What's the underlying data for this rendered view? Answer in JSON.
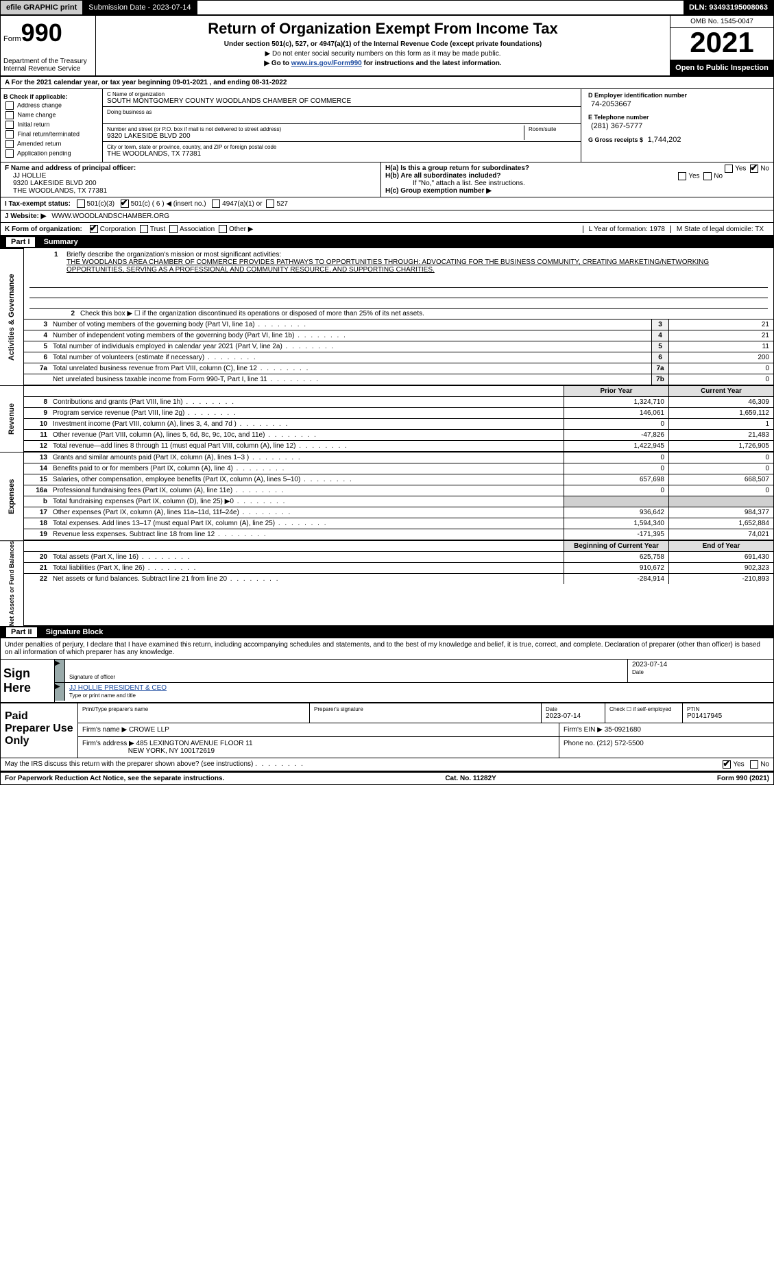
{
  "topbar": {
    "efile": "efile GRAPHIC print",
    "submission": "Submission Date - 2023-07-14",
    "dln": "DLN: 93493195008063"
  },
  "header": {
    "form_prefix": "Form",
    "form_number": "990",
    "dept": "Department of the Treasury",
    "irs": "Internal Revenue Service",
    "title": "Return of Organization Exempt From Income Tax",
    "sub1": "Under section 501(c), 527, or 4947(a)(1) of the Internal Revenue Code (except private foundations)",
    "sub2": "▶ Do not enter social security numbers on this form as it may be made public.",
    "sub3_a": "▶ Go to ",
    "sub3_link": "www.irs.gov/Form990",
    "sub3_b": " for instructions and the latest information.",
    "omb": "OMB No. 1545-0047",
    "year": "2021",
    "open": "Open to Public Inspection"
  },
  "A": {
    "text": "For the 2021 calendar year, or tax year beginning 09-01-2021   , and ending 08-31-2022"
  },
  "B": {
    "label": "B Check if applicable:",
    "items": [
      "Address change",
      "Name change",
      "Initial return",
      "Final return/terminated",
      "Amended return",
      "Application pending"
    ]
  },
  "C": {
    "name_label": "C Name of organization",
    "name": "SOUTH MONTGOMERY COUNTY WOODLANDS CHAMBER OF COMMERCE",
    "dba_label": "Doing business as",
    "street_label": "Number and street (or P.O. box if mail is not delivered to street address)",
    "room_label": "Room/suite",
    "street": "9320 LAKESIDE BLVD 200",
    "city_label": "City or town, state or province, country, and ZIP or foreign postal code",
    "city": "THE WOODLANDS, TX  77381"
  },
  "D": {
    "label": "D Employer identification number",
    "value": "74-2053667"
  },
  "E": {
    "label": "E Telephone number",
    "value": "(281) 367-5777"
  },
  "G": {
    "label": "G Gross receipts $",
    "value": "1,744,202"
  },
  "F": {
    "label": "F  Name and address of principal officer:",
    "name": "JJ HOLLIE",
    "addr1": "9320 LAKESIDE BLVD 200",
    "addr2": "THE WOODLANDS, TX  77381"
  },
  "H": {
    "a": "H(a)  Is this a group return for subordinates?",
    "a_yes": "Yes",
    "a_no": "No",
    "b": "H(b)  Are all subordinates included?",
    "b_yes": "Yes",
    "b_no": "No",
    "b_note": "If \"No,\" attach a list. See instructions.",
    "c": "H(c)  Group exemption number ▶"
  },
  "I": {
    "label": "I   Tax-exempt status:",
    "c3": "501(c)(3)",
    "c": "501(c) ( 6 ) ◀ (insert no.)",
    "a1": "4947(a)(1) or",
    "s527": "527"
  },
  "J": {
    "label": "J   Website: ▶",
    "value": "WWW.WOODLANDSCHAMBER.ORG"
  },
  "K": {
    "label": "K Form of organization:",
    "opts": [
      "Corporation",
      "Trust",
      "Association",
      "Other ▶"
    ],
    "L": "L Year of formation: 1978",
    "M": "M State of legal domicile: TX"
  },
  "partI": {
    "num": "Part I",
    "title": "Summary"
  },
  "mission": {
    "n": "1",
    "label": "Briefly describe the organization's mission or most significant activities:",
    "text": "THE WOODLANDS AREA CHAMBER OF COMMERCE PROVIDES PATHWAYS TO OPPORTUNITIES THROUGH: ADVOCATING FOR THE BUSINESS COMMUNITY, CREATING MARKETING/NETWORKING OPPORTUNITIES, SERVING AS A PROFESSIONAL AND COMMUNITY RESOURCE, AND SUPPORTING CHARITIES."
  },
  "gov": {
    "side": "Activities & Governance",
    "line2": "Check this box ▶ ☐  if the organization discontinued its operations or disposed of more than 25% of its net assets.",
    "rows": [
      {
        "n": "3",
        "desc": "Number of voting members of the governing body (Part VI, line 1a)",
        "box": "3",
        "val": "21"
      },
      {
        "n": "4",
        "desc": "Number of independent voting members of the governing body (Part VI, line 1b)",
        "box": "4",
        "val": "21"
      },
      {
        "n": "5",
        "desc": "Total number of individuals employed in calendar year 2021 (Part V, line 2a)",
        "box": "5",
        "val": "11"
      },
      {
        "n": "6",
        "desc": "Total number of volunteers (estimate if necessary)",
        "box": "6",
        "val": "200"
      },
      {
        "n": "7a",
        "desc": "Total unrelated business revenue from Part VIII, column (C), line 12",
        "box": "7a",
        "val": "0"
      },
      {
        "n": "",
        "desc": "Net unrelated business taxable income from Form 990-T, Part I, line 11",
        "box": "7b",
        "val": "0"
      }
    ],
    "hdrcols": [
      "Prior Year",
      "Current Year"
    ]
  },
  "rev": {
    "side": "Revenue",
    "rows": [
      {
        "n": "8",
        "desc": "Contributions and grants (Part VIII, line 1h)",
        "py": "1,324,710",
        "cy": "46,309"
      },
      {
        "n": "9",
        "desc": "Program service revenue (Part VIII, line 2g)",
        "py": "146,061",
        "cy": "1,659,112"
      },
      {
        "n": "10",
        "desc": "Investment income (Part VIII, column (A), lines 3, 4, and 7d )",
        "py": "0",
        "cy": "1"
      },
      {
        "n": "11",
        "desc": "Other revenue (Part VIII, column (A), lines 5, 6d, 8c, 9c, 10c, and 11e)",
        "py": "-47,826",
        "cy": "21,483"
      },
      {
        "n": "12",
        "desc": "Total revenue—add lines 8 through 11 (must equal Part VIII, column (A), line 12)",
        "py": "1,422,945",
        "cy": "1,726,905"
      }
    ]
  },
  "exp": {
    "side": "Expenses",
    "rows": [
      {
        "n": "13",
        "desc": "Grants and similar amounts paid (Part IX, column (A), lines 1–3 )",
        "py": "0",
        "cy": "0"
      },
      {
        "n": "14",
        "desc": "Benefits paid to or for members (Part IX, column (A), line 4)",
        "py": "0",
        "cy": "0"
      },
      {
        "n": "15",
        "desc": "Salaries, other compensation, employee benefits (Part IX, column (A), lines 5–10)",
        "py": "657,698",
        "cy": "668,507"
      },
      {
        "n": "16a",
        "desc": "Professional fundraising fees (Part IX, column (A), line 11e)",
        "py": "0",
        "cy": "0"
      },
      {
        "n": "b",
        "desc": "Total fundraising expenses (Part IX, column (D), line 25) ▶0",
        "py": "",
        "cy": "",
        "shade": true
      },
      {
        "n": "17",
        "desc": "Other expenses (Part IX, column (A), lines 11a–11d, 11f–24e)",
        "py": "936,642",
        "cy": "984,377"
      },
      {
        "n": "18",
        "desc": "Total expenses. Add lines 13–17 (must equal Part IX, column (A), line 25)",
        "py": "1,594,340",
        "cy": "1,652,884"
      },
      {
        "n": "19",
        "desc": "Revenue less expenses. Subtract line 18 from line 12",
        "py": "-171,395",
        "cy": "74,021"
      }
    ]
  },
  "net": {
    "side": "Net Assets or Fund Balances",
    "hdrcols": [
      "Beginning of Current Year",
      "End of Year"
    ],
    "rows": [
      {
        "n": "20",
        "desc": "Total assets (Part X, line 16)",
        "py": "625,758",
        "cy": "691,430"
      },
      {
        "n": "21",
        "desc": "Total liabilities (Part X, line 26)",
        "py": "910,672",
        "cy": "902,323"
      },
      {
        "n": "22",
        "desc": "Net assets or fund balances. Subtract line 21 from line 20",
        "py": "-284,914",
        "cy": "-210,893"
      }
    ]
  },
  "partII": {
    "num": "Part II",
    "title": "Signature Block"
  },
  "sig": {
    "decl": "Under penalties of perjury, I declare that I have examined this return, including accompanying schedules and statements, and to the best of my knowledge and belief, it is true, correct, and complete. Declaration of preparer (other than officer) is based on all information of which preparer has any knowledge.",
    "sign_here": "Sign Here",
    "sig_of_officer": "Signature of officer",
    "sig_date": "2023-07-14",
    "date_label": "Date",
    "name_title": "JJ HOLLIE  PRESIDENT & CEO",
    "type_label": "Type or print name and title"
  },
  "paid": {
    "lab": "Paid Preparer Use Only",
    "print_label": "Print/Type preparer's name",
    "sig_label": "Preparer's signature",
    "date_label": "Date",
    "date": "2023-07-14",
    "check_label": "Check ☐ if self-employed",
    "ptin_label": "PTIN",
    "ptin": "P01417945",
    "firm_name_label": "Firm's name    ▶",
    "firm_name": "CROWE LLP",
    "firm_ein_label": "Firm's EIN ▶",
    "firm_ein": "35-0921680",
    "firm_addr_label": "Firm's address ▶",
    "firm_addr1": "485 LEXINGTON AVENUE FLOOR 11",
    "firm_addr2": "NEW YORK, NY  100172619",
    "phone_label": "Phone no.",
    "phone": "(212) 572-5500"
  },
  "discuss": {
    "q": "May the IRS discuss this return with the preparer shown above? (see instructions)",
    "yes": "Yes",
    "no": "No"
  },
  "footer": {
    "left": "For Paperwork Reduction Act Notice, see the separate instructions.",
    "mid": "Cat. No. 11282Y",
    "right": "Form 990 (2021)"
  },
  "link_irs": "www.irs.gov/Form990"
}
